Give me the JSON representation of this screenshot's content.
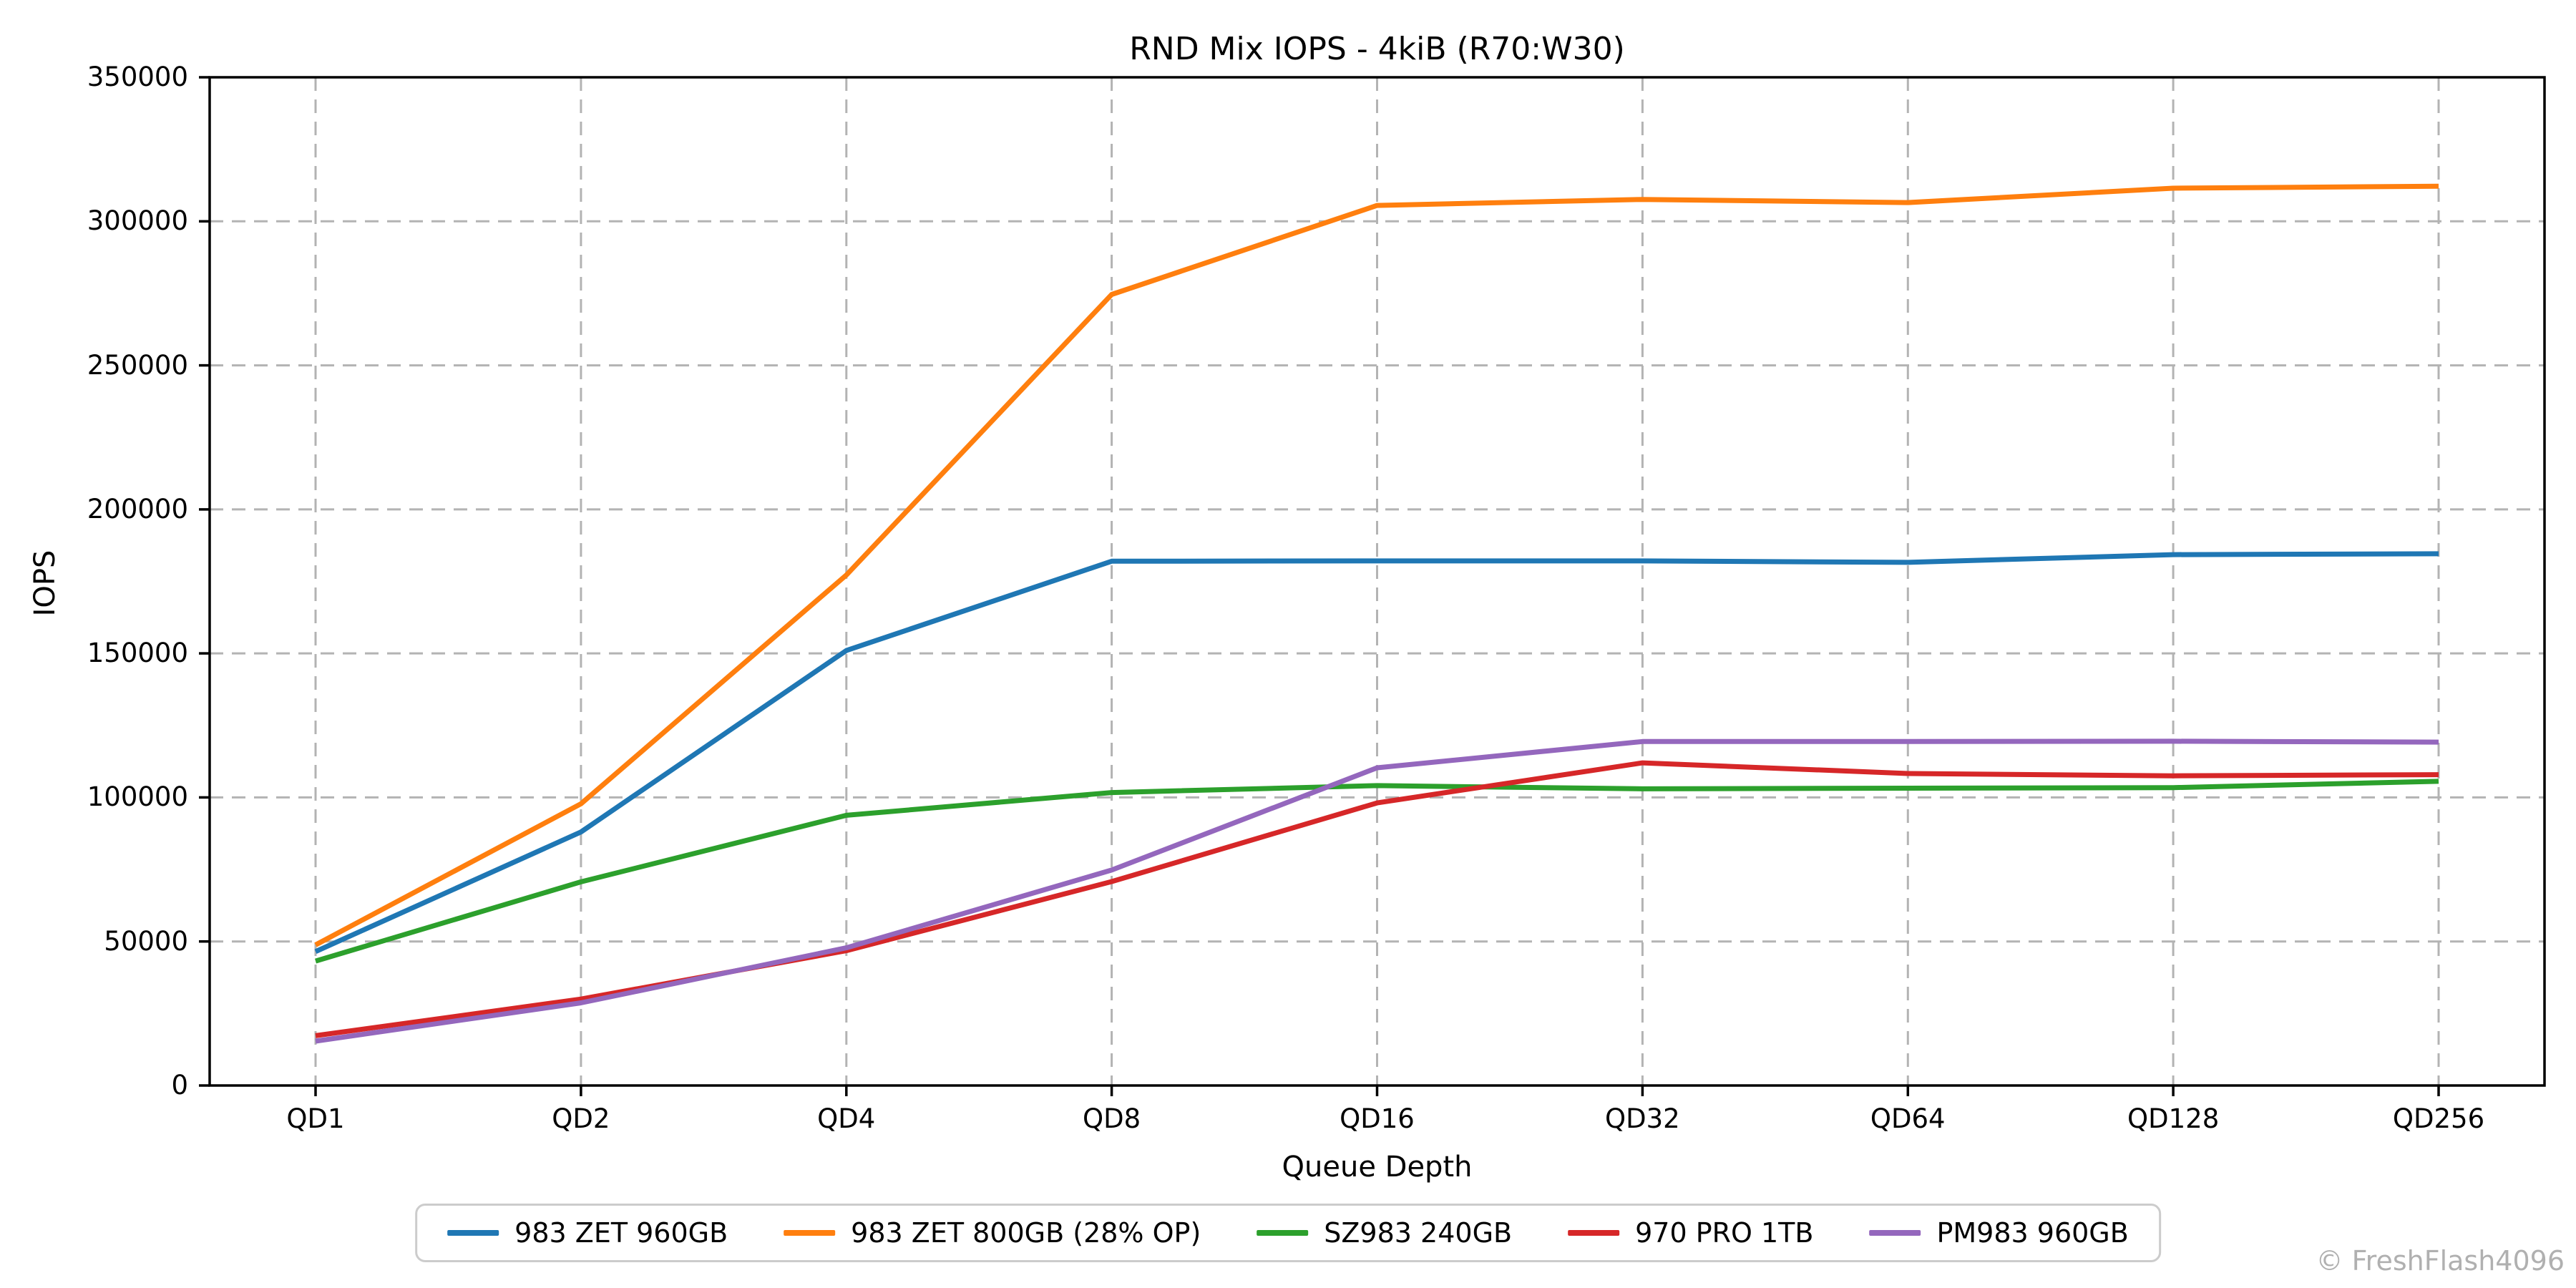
{
  "title": "RND Mix IOPS - 4kiB (R70:W30)",
  "watermark": "© FreshFlash4096",
  "chart_data": {
    "type": "line",
    "title": "RND Mix IOPS - 4kiB (R70:W30)",
    "xlabel": "Queue Depth",
    "ylabel": "IOPS",
    "categories": [
      "QD1",
      "QD2",
      "QD4",
      "QD8",
      "QD16",
      "QD32",
      "QD64",
      "QD128",
      "QD256"
    ],
    "ylim": [
      0,
      350000
    ],
    "yticks": [
      0,
      50000,
      100000,
      150000,
      200000,
      250000,
      300000,
      350000
    ],
    "grid": "dashed-both-axes",
    "grid_color": "#b3b3b3",
    "legend_position": "bottom-center",
    "series": [
      {
        "name": "983 ZET 960GB",
        "color": "#1f77b4",
        "values": [
          46500,
          88000,
          151000,
          182000,
          182100,
          182100,
          181600,
          184300,
          184600
        ]
      },
      {
        "name": "983 ZET 800GB (28% OP)",
        "color": "#ff7f0e",
        "values": [
          48800,
          97800,
          177200,
          274600,
          305500,
          307600,
          306500,
          311500,
          312200
        ]
      },
      {
        "name": "SZ983 240GB",
        "color": "#2ca02c",
        "values": [
          43200,
          70700,
          93800,
          101700,
          104100,
          103000,
          103200,
          103400,
          105600
        ]
      },
      {
        "name": "970 PRO 1TB",
        "color": "#d62728",
        "values": [
          17300,
          30000,
          46800,
          70800,
          98100,
          112000,
          108300,
          107500,
          107900
        ]
      },
      {
        "name": "PM983 960GB",
        "color": "#9467bd",
        "values": [
          15400,
          28700,
          47800,
          74800,
          110300,
          119400,
          119400,
          119500,
          119200
        ]
      }
    ]
  }
}
